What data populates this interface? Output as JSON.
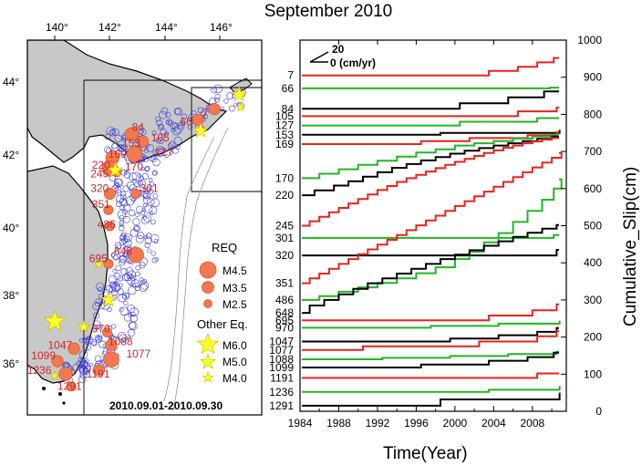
{
  "figure_title": "September 2010",
  "map": {
    "lon_ticks": [
      "140°",
      "142°",
      "144°",
      "146°"
    ],
    "lat_ticks": [
      "44°",
      "42°",
      "40°",
      "38°",
      "36°"
    ],
    "date_range": "2010.09.01-2010.09.30",
    "legend": {
      "req_title": "REQ",
      "req_items": [
        "M4.5",
        "M3.5",
        "M2.5"
      ],
      "other_title": "Other Eq.",
      "other_items": [
        "M6.0",
        "M5.0",
        "M4.0"
      ]
    },
    "req_labels": [
      {
        "id": "7",
        "lon": 145.35,
        "lat": 43.0
      },
      {
        "id": "66",
        "lon": 144.55,
        "lat": 42.75
      },
      {
        "id": "84",
        "lon": 142.8,
        "lat": 42.6
      },
      {
        "id": "105",
        "lon": 143.5,
        "lat": 42.3
      },
      {
        "id": "153",
        "lon": 142.45,
        "lat": 42.15
      },
      {
        "id": "127",
        "lon": 143.65,
        "lat": 41.9
      },
      {
        "id": "169",
        "lon": 141.95,
        "lat": 41.85
      },
      {
        "id": "170",
        "lon": 142.55,
        "lat": 41.5
      },
      {
        "id": "220",
        "lon": 141.35,
        "lat": 41.55
      },
      {
        "id": "245",
        "lon": 141.3,
        "lat": 41.3
      },
      {
        "id": "301",
        "lon": 143.1,
        "lat": 40.9
      },
      {
        "id": "320",
        "lon": 141.3,
        "lat": 40.9
      },
      {
        "id": "351",
        "lon": 141.35,
        "lat": 40.45
      },
      {
        "id": "486",
        "lon": 141.55,
        "lat": 39.9
      },
      {
        "id": "695",
        "lon": 141.25,
        "lat": 38.95
      },
      {
        "id": "648",
        "lon": 142.15,
        "lat": 39.15
      },
      {
        "id": "970",
        "lon": 141.35,
        "lat": 37.0
      },
      {
        "id": "1088",
        "lon": 141.95,
        "lat": 36.65
      },
      {
        "id": "1047",
        "lon": 139.75,
        "lat": 36.55
      },
      {
        "id": "1077",
        "lon": 142.6,
        "lat": 36.3
      },
      {
        "id": "1099",
        "lon": 139.15,
        "lat": 36.25
      },
      {
        "id": "1236",
        "lon": 139.0,
        "lat": 35.85
      },
      {
        "id": "1191",
        "lon": 141.15,
        "lat": 35.75
      },
      {
        "id": "1291",
        "lon": 140.1,
        "lat": 35.4
      }
    ],
    "req_events": [
      {
        "lon": 145.8,
        "lat": 43.2,
        "mag": 3.5
      },
      {
        "lon": 145.2,
        "lat": 42.9,
        "mag": 3.5
      },
      {
        "lon": 142.8,
        "lat": 42.5,
        "mag": 4.0
      },
      {
        "lon": 143.2,
        "lat": 42.3,
        "mag": 3.5
      },
      {
        "lon": 142.9,
        "lat": 41.95,
        "mag": 4.5
      },
      {
        "lon": 142.1,
        "lat": 41.85,
        "mag": 4.0
      },
      {
        "lon": 142.0,
        "lat": 41.55,
        "mag": 4.5
      },
      {
        "lon": 142.25,
        "lat": 41.45,
        "mag": 3.0
      },
      {
        "lon": 142.0,
        "lat": 40.85,
        "mag": 3.5
      },
      {
        "lon": 142.95,
        "lat": 40.85,
        "mag": 3.0
      },
      {
        "lon": 141.95,
        "lat": 40.4,
        "mag": 3.0
      },
      {
        "lon": 142.0,
        "lat": 39.95,
        "mag": 3.0
      },
      {
        "lon": 142.95,
        "lat": 39.15,
        "mag": 4.5
      },
      {
        "lon": 141.95,
        "lat": 38.9,
        "mag": 3.0
      },
      {
        "lon": 141.9,
        "lat": 37.0,
        "mag": 3.0
      },
      {
        "lon": 142.05,
        "lat": 36.65,
        "mag": 3.5
      },
      {
        "lon": 140.7,
        "lat": 36.55,
        "mag": 3.5
      },
      {
        "lon": 142.05,
        "lat": 36.25,
        "mag": 4.5
      },
      {
        "lon": 140.1,
        "lat": 36.2,
        "mag": 3.5
      },
      {
        "lon": 140.4,
        "lat": 35.85,
        "mag": 4.0
      },
      {
        "lon": 141.6,
        "lat": 35.95,
        "mag": 3.5
      },
      {
        "lon": 140.6,
        "lat": 35.5,
        "mag": 3.0
      }
    ],
    "other_events": [
      {
        "lon": 140.0,
        "lat": 37.3,
        "mag": 6.0
      },
      {
        "lon": 141.05,
        "lat": 37.15,
        "mag": 4.5
      },
      {
        "lon": 141.95,
        "lat": 37.9,
        "mag": 5.0
      },
      {
        "lon": 142.2,
        "lat": 41.5,
        "mag": 5.0
      },
      {
        "lon": 145.3,
        "lat": 42.6,
        "mag": 5.0
      },
      {
        "lon": 146.7,
        "lat": 43.6,
        "mag": 5.0
      },
      {
        "lon": 146.75,
        "lat": 43.25,
        "mag": 4.0
      },
      {
        "lon": 141.6,
        "lat": 38.9,
        "mag": 4.0
      },
      {
        "lon": 140.0,
        "lat": 35.8,
        "mag": 4.0
      }
    ]
  },
  "chart_data": {
    "type": "line",
    "title": "",
    "xlabel": "Time(Year)",
    "ylabel": "Cumulative_Slip(cm)",
    "xlim": [
      1984,
      2011.5
    ],
    "ylim": [
      0,
      1000
    ],
    "x_ticks": [
      "1984",
      "1988",
      "1992",
      "1996",
      "2000",
      "2004",
      "2008"
    ],
    "y_ticks": [
      "0",
      "100",
      "200",
      "300",
      "400",
      "500",
      "600",
      "700",
      "800",
      "900",
      "1000"
    ],
    "scale_bar": {
      "top": "20",
      "bottom": "0 (cm/yr)"
    },
    "colors": {
      "red": "#e8231f",
      "green": "#21b622",
      "black": "#000000"
    },
    "series": [
      {
        "name": "7",
        "color": "red",
        "steps": [
          [
            1984.2,
            905
          ],
          [
            2003.5,
            917
          ],
          [
            2006.5,
            928
          ],
          [
            2008.5,
            940
          ],
          [
            2010.2,
            952
          ]
        ]
      },
      {
        "name": "66",
        "color": "green",
        "steps": [
          [
            1984.2,
            870
          ],
          [
            2009.8,
            872
          ]
        ]
      },
      {
        "name": "84",
        "color": "black",
        "steps": [
          [
            1984.2,
            815
          ],
          [
            2000.5,
            830
          ],
          [
            2005.5,
            846
          ],
          [
            2009.2,
            862
          ]
        ]
      },
      {
        "name": "105",
        "color": "red",
        "steps": [
          [
            1984.2,
            795
          ],
          [
            2006.5,
            808
          ],
          [
            2010.5,
            818
          ]
        ]
      },
      {
        "name": "127",
        "color": "green",
        "steps": [
          [
            1984.2,
            770
          ],
          [
            2000.5,
            780
          ],
          [
            2008.5,
            790
          ]
        ]
      },
      {
        "name": "153",
        "color": "black",
        "steps": [
          [
            1984.2,
            745
          ],
          [
            1998.5,
            750
          ],
          [
            2010.8,
            756
          ]
        ]
      },
      {
        "name": "169",
        "color": "red",
        "steps": [
          [
            1984.2,
            720
          ],
          [
            1996.5,
            728
          ],
          [
            2001.5,
            736
          ],
          [
            2007.5,
            744
          ],
          [
            2010.5,
            752
          ]
        ]
      },
      {
        "name": "170",
        "color": "green",
        "steps": [
          [
            1984.2,
            628
          ],
          [
            1986.0,
            640
          ],
          [
            1988.0,
            652
          ],
          [
            1990.0,
            664
          ],
          [
            1992.0,
            675
          ],
          [
            1994.0,
            686
          ],
          [
            1996.0,
            697
          ],
          [
            1998.0,
            706
          ],
          [
            2000.0,
            716
          ],
          [
            2002.0,
            722
          ],
          [
            2004.0,
            728
          ],
          [
            2006.0,
            735
          ],
          [
            2008.0,
            740
          ],
          [
            2010.0,
            746
          ]
        ]
      },
      {
        "name": "220",
        "color": "black",
        "steps": [
          [
            1984.2,
            582
          ],
          [
            1985.5,
            595
          ],
          [
            1987.5,
            608
          ],
          [
            1989.0,
            620
          ],
          [
            1990.5,
            632
          ],
          [
            1992.0,
            644
          ],
          [
            1993.5,
            656
          ],
          [
            1995.0,
            666
          ],
          [
            1996.5,
            676
          ],
          [
            1998.0,
            685
          ],
          [
            1999.5,
            694
          ],
          [
            2001.0,
            702
          ],
          [
            2002.5,
            709
          ],
          [
            2004.0,
            716
          ],
          [
            2005.5,
            722
          ],
          [
            2007.0,
            728
          ],
          [
            2008.5,
            734
          ],
          [
            2010.0,
            740
          ]
        ]
      },
      {
        "name": "245",
        "color": "red",
        "steps": [
          [
            1984.2,
            500
          ],
          [
            1985.0,
            512
          ],
          [
            1986.0,
            524
          ],
          [
            1987.0,
            536
          ],
          [
            1988.0,
            548
          ],
          [
            1989.0,
            560
          ],
          [
            1990.0,
            572
          ],
          [
            1991.0,
            584
          ],
          [
            1992.0,
            596
          ],
          [
            1993.0,
            607
          ],
          [
            1994.0,
            618
          ],
          [
            1995.0,
            628
          ],
          [
            1996.0,
            637
          ],
          [
            1997.0,
            646
          ],
          [
            1998.0,
            655
          ],
          [
            1999.0,
            664
          ],
          [
            2000.0,
            672
          ],
          [
            2001.0,
            680
          ],
          [
            2002.0,
            688
          ],
          [
            2003.0,
            696
          ],
          [
            2004.0,
            703
          ],
          [
            2005.0,
            710
          ],
          [
            2006.0,
            716
          ],
          [
            2007.0,
            722
          ],
          [
            2008.0,
            727
          ],
          [
            2009.0,
            732
          ],
          [
            2010.0,
            736
          ]
        ]
      },
      {
        "name": "301",
        "color": "green",
        "steps": [
          [
            1984.2,
            467
          ],
          [
            2010.2,
            475
          ]
        ]
      },
      {
        "name": "320",
        "color": "black",
        "steps": [
          [
            1984.2,
            420
          ],
          [
            2010.5,
            435
          ]
        ]
      },
      {
        "name": "351",
        "color": "red",
        "steps": [
          [
            1984.2,
            345
          ],
          [
            1985.0,
            358
          ],
          [
            1986.0,
            371
          ],
          [
            1987.0,
            384
          ],
          [
            1988.0,
            397
          ],
          [
            1989.0,
            410
          ],
          [
            1990.0,
            423
          ],
          [
            1991.0,
            436
          ],
          [
            1992.0,
            449
          ],
          [
            1993.0,
            462
          ],
          [
            1994.0,
            475
          ],
          [
            1995.0,
            488
          ],
          [
            1996.0,
            501
          ],
          [
            1997.0,
            514
          ],
          [
            1998.0,
            527
          ],
          [
            1999.0,
            540
          ],
          [
            2000.0,
            553
          ],
          [
            2001.0,
            566
          ],
          [
            2002.0,
            579
          ],
          [
            2003.0,
            592
          ],
          [
            2004.0,
            605
          ],
          [
            2005.0,
            618
          ],
          [
            2006.0,
            631
          ],
          [
            2007.0,
            644
          ],
          [
            2008.0,
            657
          ],
          [
            2009.0,
            670
          ],
          [
            2010.0,
            683
          ],
          [
            2011.0,
            696
          ]
        ]
      },
      {
        "name": "486",
        "color": "green",
        "steps": [
          [
            1984.2,
            300
          ],
          [
            1986.0,
            310
          ],
          [
            1988.0,
            322
          ],
          [
            1990.0,
            334
          ],
          [
            1992.0,
            346
          ],
          [
            1994.0,
            358
          ],
          [
            1996.0,
            372
          ],
          [
            1998.0,
            388
          ],
          [
            2000.0,
            410
          ],
          [
            2001.5,
            430
          ],
          [
            2003.0,
            455
          ],
          [
            2004.5,
            480
          ],
          [
            2006.0,
            510
          ],
          [
            2007.5,
            540
          ],
          [
            2009.0,
            570
          ],
          [
            2010.2,
            600
          ],
          [
            2011.0,
            625
          ]
        ]
      },
      {
        "name": "648",
        "color": "black",
        "steps": [
          [
            1984.2,
            265
          ],
          [
            1985.0,
            285
          ],
          [
            1986.5,
            300
          ],
          [
            1988.0,
            315
          ],
          [
            1989.5,
            330
          ],
          [
            1991.0,
            345
          ],
          [
            1992.5,
            358
          ],
          [
            1994.0,
            371
          ],
          [
            1995.5,
            384
          ],
          [
            1997.0,
            397
          ],
          [
            1998.5,
            410
          ],
          [
            2000.0,
            422
          ],
          [
            2001.5,
            434
          ],
          [
            2003.0,
            446
          ],
          [
            2004.5,
            458
          ],
          [
            2006.0,
            470
          ],
          [
            2007.5,
            481
          ],
          [
            2009.0,
            492
          ],
          [
            2010.5,
            502
          ]
        ]
      },
      {
        "name": "695",
        "color": "red",
        "steps": [
          [
            1984.2,
            245
          ],
          [
            2003.5,
            258
          ],
          [
            2008.0,
            272
          ],
          [
            2010.5,
            288
          ]
        ]
      },
      {
        "name": "970",
        "color": "green",
        "steps": [
          [
            1984.2,
            225
          ],
          [
            1997.5,
            230
          ],
          [
            2004.5,
            236
          ],
          [
            2010.8,
            242
          ]
        ]
      },
      {
        "name": "1047",
        "color": "black",
        "steps": [
          [
            1984.2,
            188
          ],
          [
            1999.5,
            196
          ],
          [
            2004.5,
            205
          ],
          [
            2008.5,
            214
          ],
          [
            2010.5,
            224
          ]
        ]
      },
      {
        "name": "1077",
        "color": "red",
        "steps": [
          [
            1984.2,
            165
          ],
          [
            1990.5,
            175
          ],
          [
            2002.5,
            188
          ],
          [
            2008.5,
            202
          ],
          [
            2010.5,
            216
          ]
        ]
      },
      {
        "name": "1088",
        "color": "green",
        "steps": [
          [
            1984.2,
            140
          ],
          [
            1992.5,
            144
          ],
          [
            1999.5,
            149
          ],
          [
            2005.5,
            154
          ],
          [
            2010.5,
            160
          ]
        ]
      },
      {
        "name": "1099",
        "color": "black",
        "steps": [
          [
            1984.2,
            118
          ],
          [
            1996.5,
            126
          ],
          [
            2003.5,
            136
          ],
          [
            2007.5,
            146
          ],
          [
            2010.2,
            158
          ]
        ]
      },
      {
        "name": "1191",
        "color": "red",
        "steps": [
          [
            1984.2,
            90
          ],
          [
            2008.5,
            102
          ]
        ]
      },
      {
        "name": "1236",
        "color": "green",
        "steps": [
          [
            1984.2,
            52
          ],
          [
            2003.5,
            58
          ],
          [
            2010.8,
            66
          ]
        ]
      },
      {
        "name": "1291",
        "color": "black",
        "steps": [
          [
            1984.2,
            15
          ],
          [
            1998.5,
            32
          ],
          [
            2010.8,
            48
          ]
        ]
      }
    ]
  }
}
